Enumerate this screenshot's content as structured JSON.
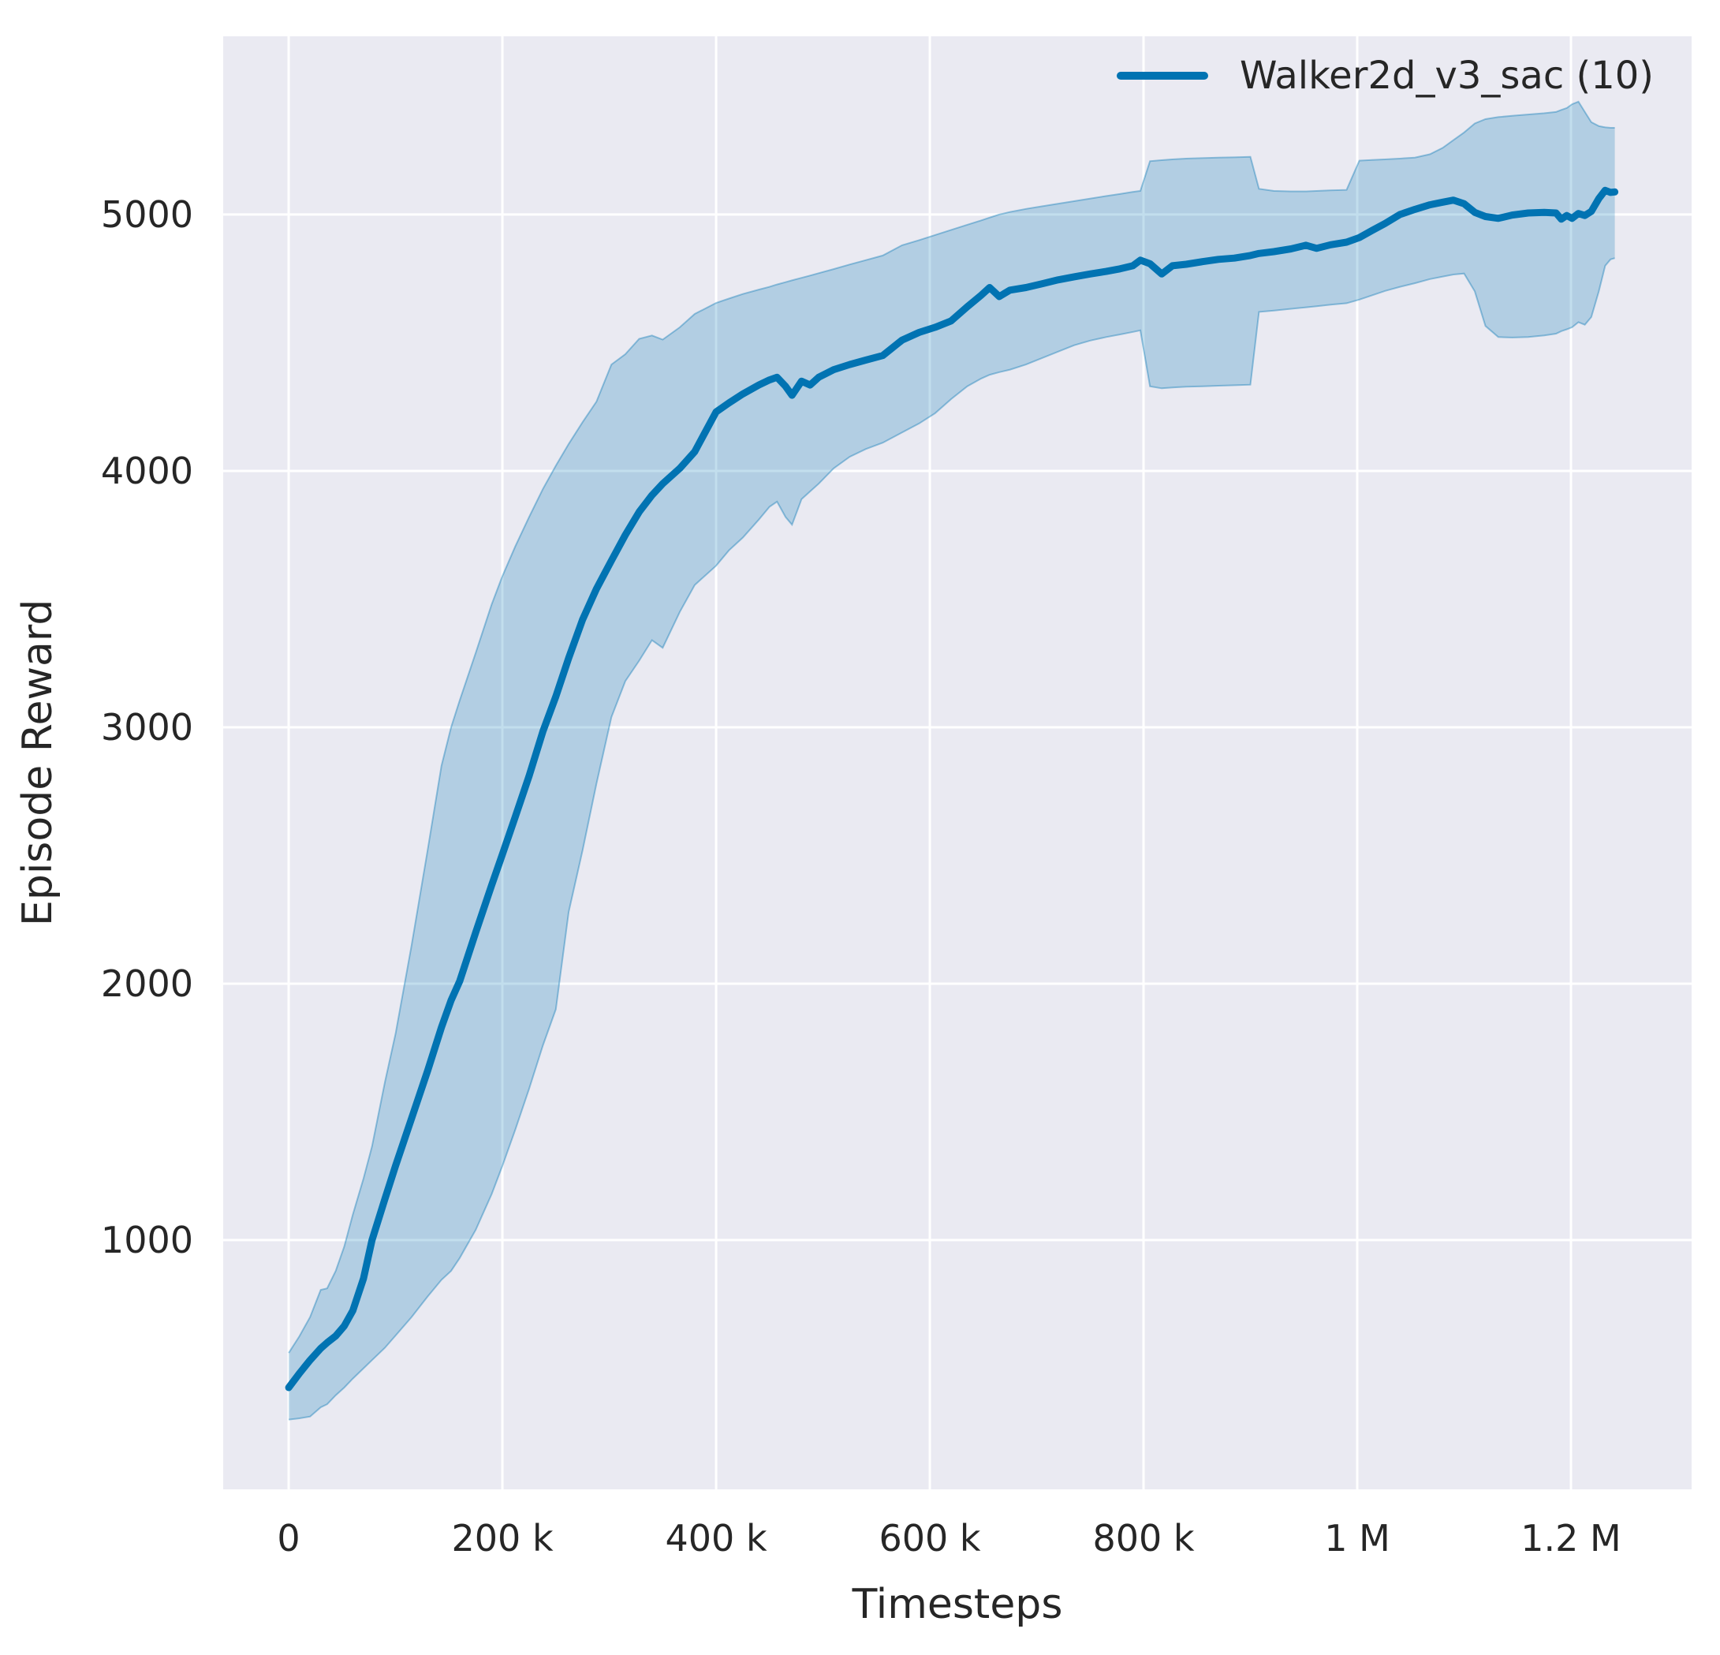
{
  "chart_data": {
    "type": "line",
    "title": "",
    "xlabel": "Timesteps",
    "ylabel": "Episode Reward",
    "grid": true,
    "legend_position": "upper right",
    "colors": {
      "figure_background": "#ffffff",
      "axes_background": "#eaeaf2",
      "grid": "#ffffff",
      "text": "#262626",
      "line": "#0173b2",
      "band_fill": "rgba(1,115,178,0.24)",
      "band_edge": "rgba(1,115,178,0.38)"
    },
    "xlim": [
      -61300,
      1312900
    ],
    "ylim": [
      28,
      5695
    ],
    "x_ticks": [
      {
        "value": 0,
        "label": "0"
      },
      {
        "value": 200000,
        "label": "200 k"
      },
      {
        "value": 400000,
        "label": "400 k"
      },
      {
        "value": 600000,
        "label": "600 k"
      },
      {
        "value": 800000,
        "label": "800 k"
      },
      {
        "value": 1000000,
        "label": "1 M"
      },
      {
        "value": 1200000,
        "label": "1.2 M"
      }
    ],
    "y_ticks": [
      {
        "value": 1000,
        "label": "1000"
      },
      {
        "value": 2000,
        "label": "2000"
      },
      {
        "value": 3000,
        "label": "3000"
      },
      {
        "value": 4000,
        "label": "4000"
      },
      {
        "value": 5000,
        "label": "5000"
      }
    ],
    "series": [
      {
        "name": "Walker2d_v3_sac (10)",
        "color": "#0173b2",
        "band": "min-max envelope over 10 seeds",
        "point_format": [
          "timesteps",
          "band_lower",
          "mean",
          "band_upper"
        ],
        "points": [
          [
            0,
            300,
            425,
            560
          ],
          [
            10000,
            305,
            480,
            625
          ],
          [
            20000,
            312,
            532,
            700
          ],
          [
            30000,
            348,
            578,
            806
          ],
          [
            36000,
            360,
            600,
            812
          ],
          [
            44000,
            395,
            626,
            880
          ],
          [
            52000,
            425,
            665,
            975
          ],
          [
            60000,
            460,
            725,
            1100
          ],
          [
            70000,
            500,
            850,
            1240
          ],
          [
            78000,
            532,
            1000,
            1365
          ],
          [
            90000,
            580,
            1160,
            1615
          ],
          [
            100000,
            628,
            1290,
            1805
          ],
          [
            115000,
            700,
            1475,
            2150
          ],
          [
            130000,
            780,
            1660,
            2520
          ],
          [
            143000,
            845,
            1830,
            2850
          ],
          [
            152000,
            880,
            1935,
            3000
          ],
          [
            160000,
            930,
            2010,
            3105
          ],
          [
            175000,
            1040,
            2200,
            3290
          ],
          [
            190000,
            1180,
            2385,
            3480
          ],
          [
            200000,
            1290,
            2505,
            3590
          ],
          [
            212000,
            1430,
            2650,
            3705
          ],
          [
            225000,
            1590,
            2810,
            3820
          ],
          [
            238000,
            1760,
            2985,
            3930
          ],
          [
            250000,
            1900,
            3120,
            4020
          ],
          [
            262000,
            2280,
            3270,
            4105
          ],
          [
            275000,
            2520,
            3420,
            4190
          ],
          [
            288000,
            2780,
            3540,
            4270
          ],
          [
            302000,
            3040,
            3650,
            4415
          ],
          [
            315000,
            3180,
            3750,
            4455
          ],
          [
            328000,
            3260,
            3840,
            4515
          ],
          [
            340000,
            3340,
            3905,
            4528
          ],
          [
            350000,
            3310,
            3950,
            4512
          ],
          [
            366000,
            3450,
            4010,
            4560
          ],
          [
            380000,
            3555,
            4075,
            4612
          ],
          [
            400000,
            3630,
            4230,
            4655
          ],
          [
            412000,
            3690,
            4265,
            4672
          ],
          [
            425000,
            3740,
            4300,
            4690
          ],
          [
            440000,
            3810,
            4335,
            4707
          ],
          [
            450000,
            3860,
            4355,
            4718
          ],
          [
            457000,
            3880,
            4365,
            4727
          ],
          [
            465000,
            3820,
            4330,
            4736
          ],
          [
            471000,
            3790,
            4295,
            4743
          ],
          [
            480000,
            3890,
            4350,
            4753
          ],
          [
            488000,
            3920,
            4335,
            4762
          ],
          [
            496000,
            3950,
            4365,
            4771
          ],
          [
            510000,
            4010,
            4395,
            4787
          ],
          [
            525000,
            4055,
            4415,
            4805
          ],
          [
            540000,
            4085,
            4432,
            4822
          ],
          [
            556000,
            4110,
            4450,
            4840
          ],
          [
            574000,
            4150,
            4510,
            4880
          ],
          [
            590000,
            4185,
            4540,
            4900
          ],
          [
            605000,
            4225,
            4560,
            4920
          ],
          [
            620000,
            4280,
            4585,
            4940
          ],
          [
            635000,
            4330,
            4640,
            4960
          ],
          [
            648000,
            4360,
            4685,
            4977
          ],
          [
            656000,
            4375,
            4715,
            4988
          ],
          [
            665000,
            4385,
            4680,
            5000
          ],
          [
            675000,
            4395,
            4705,
            5010
          ],
          [
            690000,
            4415,
            4715,
            5022
          ],
          [
            705000,
            4440,
            4730,
            5032
          ],
          [
            720000,
            4465,
            4745,
            5042
          ],
          [
            735000,
            4490,
            4757,
            5052
          ],
          [
            750000,
            4508,
            4768,
            5062
          ],
          [
            765000,
            4522,
            4778,
            5072
          ],
          [
            778000,
            4532,
            4788,
            5080
          ],
          [
            790000,
            4542,
            4800,
            5088
          ],
          [
            797000,
            4548,
            4822,
            5092
          ],
          [
            806000,
            4330,
            4808,
            5208
          ],
          [
            817000,
            4322,
            4768,
            5212
          ],
          [
            827000,
            4325,
            4800,
            5215
          ],
          [
            840000,
            4328,
            4806,
            5218
          ],
          [
            855000,
            4330,
            4816,
            5220
          ],
          [
            870000,
            4332,
            4825,
            5222
          ],
          [
            885000,
            4334,
            4830,
            5223
          ],
          [
            900000,
            4336,
            4840,
            5225
          ],
          [
            908000,
            4620,
            4848,
            5100
          ],
          [
            922000,
            4625,
            4855,
            5092
          ],
          [
            938000,
            4632,
            4866,
            5090
          ],
          [
            952000,
            4638,
            4880,
            5090
          ],
          [
            962000,
            4642,
            4868,
            5092
          ],
          [
            975000,
            4648,
            4882,
            5094
          ],
          [
            990000,
            4654,
            4892,
            5096
          ],
          [
            1002000,
            4668,
            4910,
            5210
          ],
          [
            1014000,
            4685,
            4938,
            5213
          ],
          [
            1026000,
            4702,
            4965,
            5215
          ],
          [
            1040000,
            4718,
            5000,
            5218
          ],
          [
            1054000,
            4732,
            5020,
            5222
          ],
          [
            1068000,
            4748,
            5038,
            5235
          ],
          [
            1080000,
            4758,
            5048,
            5260
          ],
          [
            1090000,
            4766,
            5056,
            5290
          ],
          [
            1100000,
            4770,
            5042,
            5320
          ],
          [
            1110000,
            4700,
            5008,
            5355
          ],
          [
            1120000,
            4565,
            4992,
            5372
          ],
          [
            1132000,
            4522,
            4985,
            5380
          ],
          [
            1145000,
            4520,
            4998,
            5385
          ],
          [
            1160000,
            4522,
            5006,
            5390
          ],
          [
            1175000,
            4528,
            5008,
            5395
          ],
          [
            1186000,
            4535,
            5006,
            5400
          ],
          [
            1191000,
            4545,
            4982,
            5408
          ],
          [
            1196000,
            4552,
            4996,
            5415
          ],
          [
            1201000,
            4560,
            4985,
            5430
          ],
          [
            1207000,
            4580,
            5004,
            5440
          ],
          [
            1213000,
            4570,
            4996,
            5400
          ],
          [
            1219000,
            4600,
            5012,
            5360
          ],
          [
            1226000,
            4700,
            5062,
            5345
          ],
          [
            1232000,
            4800,
            5094,
            5340
          ],
          [
            1237000,
            4825,
            5086,
            5338
          ],
          [
            1241000,
            4830,
            5088,
            5338
          ]
        ]
      }
    ]
  },
  "legend": {
    "label": "Walker2d_v3_sac (10)"
  },
  "axes": {
    "xlabel": "Timesteps",
    "ylabel": "Episode Reward"
  }
}
